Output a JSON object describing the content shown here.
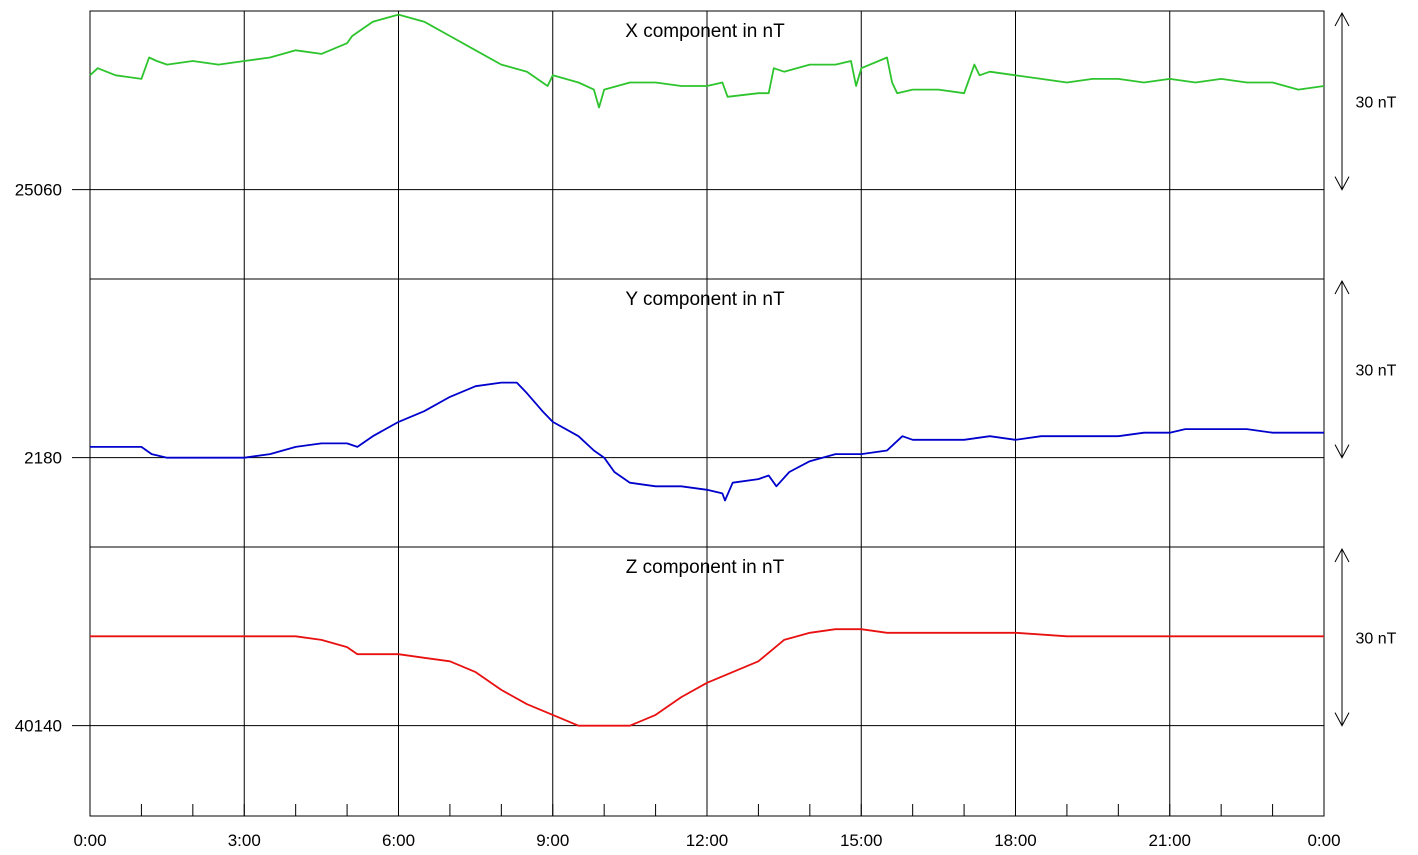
{
  "chart_data": {
    "type": "line",
    "x_tick_labels": [
      "0:00",
      "3:00",
      "6:00",
      "9:00",
      "12:00",
      "15:00",
      "18:00",
      "21:00",
      "0:00"
    ],
    "x_range_hours": [
      0,
      24
    ],
    "minor_tick_step_hours": 1,
    "scale_bar_label": "30 nT",
    "panels": [
      {
        "title": "X component in nT",
        "baseline_label": "25060",
        "baseline": 25060,
        "ylim": [
          25035,
          25110
        ],
        "color": "#2dc42d",
        "x": [
          0,
          0.15,
          0.5,
          1.0,
          1.15,
          1.3,
          1.5,
          2.0,
          2.5,
          3.0,
          3.5,
          4.0,
          4.5,
          5.0,
          5.1,
          5.5,
          6.0,
          6.5,
          7.0,
          7.5,
          8.0,
          8.5,
          8.9,
          9.0,
          9.5,
          9.8,
          9.9,
          10.0,
          10.5,
          11.0,
          11.5,
          12.0,
          12.3,
          12.4,
          13.0,
          13.2,
          13.3,
          13.5,
          14.0,
          14.5,
          14.8,
          14.9,
          15.0,
          15.5,
          15.6,
          15.7,
          16.0,
          16.5,
          17.0,
          17.2,
          17.3,
          17.5,
          18.0,
          18.5,
          19.0,
          19.5,
          20.0,
          20.5,
          21.0,
          21.5,
          22.0,
          22.5,
          23.0,
          23.5,
          24.0
        ],
        "y": [
          25092,
          25094,
          25092,
          25091,
          25097,
          25096,
          25095,
          25096,
          25095,
          25096,
          25097,
          25099,
          25098,
          25101,
          25103,
          25107,
          25109,
          25107,
          25103,
          25099,
          25095,
          25093,
          25089,
          25092,
          25090,
          25088,
          25083,
          25088,
          25090,
          25090,
          25089,
          25089,
          25090,
          25086,
          25087,
          25087,
          25094,
          25093,
          25095,
          25095,
          25096,
          25089,
          25094,
          25097,
          25090,
          25087,
          25088,
          25088,
          25087,
          25095,
          25092,
          25093,
          25092,
          25091,
          25090,
          25091,
          25091,
          25090,
          25091,
          25090,
          25091,
          25090,
          25090,
          25088,
          25089
        ]
      },
      {
        "title": "Y component in nT",
        "baseline_label": "2180",
        "baseline": 2180,
        "ylim": [
          2155,
          2230
        ],
        "color": "#0000cc",
        "x": [
          0,
          0.5,
          1.0,
          1.2,
          1.5,
          2.0,
          2.5,
          3.0,
          3.5,
          4.0,
          4.5,
          5.0,
          5.2,
          5.5,
          6.0,
          6.5,
          7.0,
          7.5,
          8.0,
          8.3,
          8.5,
          8.8,
          9.0,
          9.5,
          9.8,
          10.0,
          10.2,
          10.5,
          11.0,
          11.5,
          12.0,
          12.3,
          12.35,
          12.5,
          13.0,
          13.2,
          13.35,
          13.6,
          14.0,
          14.5,
          15.0,
          15.5,
          15.8,
          16.0,
          16.5,
          17.0,
          17.5,
          18.0,
          18.5,
          19.0,
          19.5,
          20.0,
          20.5,
          21.0,
          21.3,
          21.5,
          22.0,
          22.5,
          23.0,
          23.5,
          24.0
        ],
        "y": [
          2183,
          2183,
          2183,
          2181,
          2180,
          2180,
          2180,
          2180,
          2181,
          2183,
          2184,
          2184,
          2183,
          2186,
          2190,
          2193,
          2197,
          2200,
          2201,
          2201,
          2198,
          2193,
          2190,
          2186,
          2182,
          2180,
          2176,
          2173,
          2172,
          2172,
          2171,
          2170,
          2168,
          2173,
          2174,
          2175,
          2172,
          2176,
          2179,
          2181,
          2181,
          2182,
          2186,
          2185,
          2185,
          2185,
          2186,
          2185,
          2186,
          2186,
          2186,
          2186,
          2187,
          2187,
          2188,
          2188,
          2188,
          2188,
          2187,
          2187,
          2187
        ]
      },
      {
        "title": "Z component in nT",
        "baseline_label": "40140",
        "baseline": 40140,
        "ylim": [
          40115,
          40190
        ],
        "color": "#e81010",
        "x": [
          0,
          1,
          2,
          3,
          4,
          4.5,
          5,
          5.2,
          5.5,
          6,
          6.5,
          7,
          7.5,
          8,
          8.5,
          9,
          9.5,
          10,
          10.5,
          11,
          11.5,
          12,
          12.5,
          13,
          13.5,
          14,
          14.5,
          15,
          15.5,
          16,
          17,
          18,
          19,
          20,
          21,
          22,
          23,
          24
        ],
        "y": [
          40165,
          40165,
          40165,
          40165,
          40165,
          40164,
          40162,
          40160,
          40160,
          40160,
          40159,
          40158,
          40155,
          40150,
          40146,
          40143,
          40140,
          40140,
          40140,
          40143,
          40148,
          40152,
          40155,
          40158,
          40164,
          40166,
          40167,
          40167,
          40166,
          40166,
          40166,
          40166,
          40165,
          40165,
          40165,
          40165,
          40165,
          40165
        ]
      }
    ]
  }
}
